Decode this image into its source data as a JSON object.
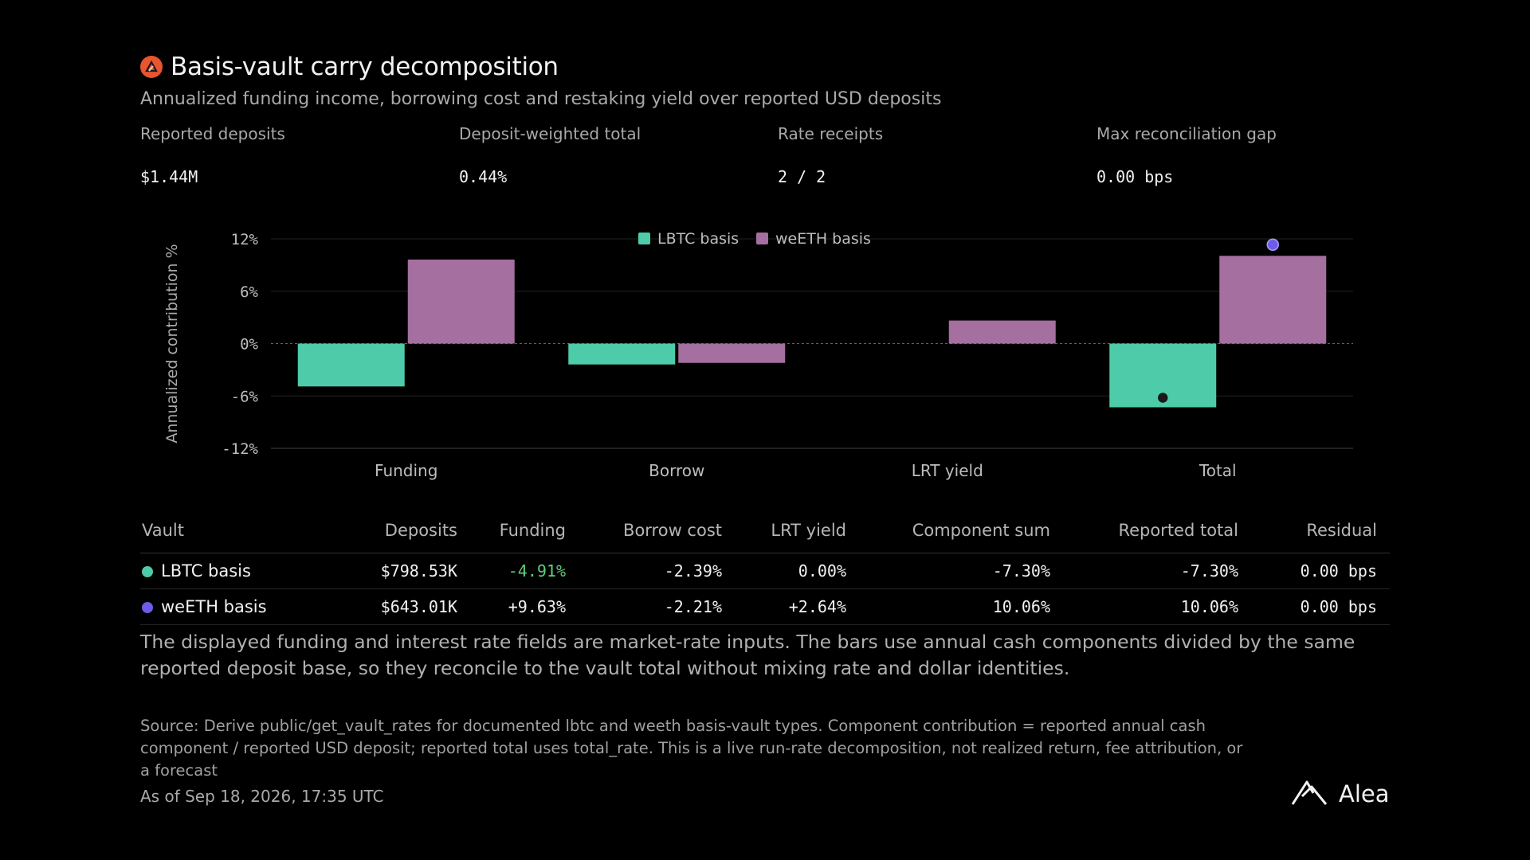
{
  "header": {
    "title": "Basis-vault carry decomposition",
    "subtitle": "Annualized funding income, borrowing cost and restaking yield over reported USD deposits",
    "logo_icon": "fire-logo-icon"
  },
  "kpis": [
    {
      "label": "Reported deposits",
      "value": "$1.44M"
    },
    {
      "label": "Deposit-weighted total",
      "value": "0.44%"
    },
    {
      "label": "Rate receipts",
      "value": "2 / 2"
    },
    {
      "label": "Max reconciliation gap",
      "value": "0.00 bps"
    }
  ],
  "chart_data": {
    "type": "bar",
    "categories": [
      "Funding",
      "Borrow",
      "LRT yield",
      "Total"
    ],
    "series": [
      {
        "name": "LBTC basis",
        "values": [
          -4.91,
          -2.39,
          0.0,
          -7.3
        ],
        "color": "#4ecba9"
      },
      {
        "name": "weETH basis",
        "values": [
          9.63,
          -2.21,
          2.64,
          10.06
        ],
        "color": "#a56fa0"
      }
    ],
    "ylabel": "Annualized contribution %",
    "ylim": [
      -12,
      12
    ],
    "yticks": [
      12,
      6,
      0,
      -6,
      -12
    ],
    "ytick_labels": [
      "12%",
      "6%",
      "0%",
      "-6%",
      "-12%"
    ],
    "legend": "top-center",
    "grid": true
  },
  "table": {
    "headers": [
      "Vault",
      "Deposits",
      "Funding",
      "Borrow cost",
      "LRT yield",
      "Component sum",
      "Reported total",
      "Residual"
    ],
    "rows": [
      {
        "vault": "LBTC basis",
        "icon_color": "#4ecba9",
        "deposits": "$798.53K",
        "funding": "-4.91%",
        "borrow": "-2.39%",
        "lrt": "0.00%",
        "sum": "-7.30%",
        "total": "-7.30%",
        "residual": "0.00 bps"
      },
      {
        "vault": "weETH basis",
        "icon_color": "#6c5ce7",
        "deposits": "$643.01K",
        "funding": "+9.63%",
        "borrow": "-2.21%",
        "lrt": "+2.64%",
        "sum": "10.06%",
        "total": "10.06%",
        "residual": "0.00 bps"
      }
    ]
  },
  "note": "The displayed funding and interest rate fields are market-rate inputs. The bars use annual cash components divided by the same reported deposit base, so they reconcile to the vault total without mixing rate and dollar identities.",
  "source": "Source: Derive public/get_vault_rates for documented lbtc and weeth basis-vault types. Component contribution = reported annual cash component / reported USD deposit; reported total uses total_rate. This is a live run-rate decomposition, not realized return, fee attribution, or a forecast",
  "as_of": "As of Sep 18, 2026, 17:35 UTC",
  "brand": {
    "name": "Alea",
    "icon": "alea-logo-icon"
  }
}
